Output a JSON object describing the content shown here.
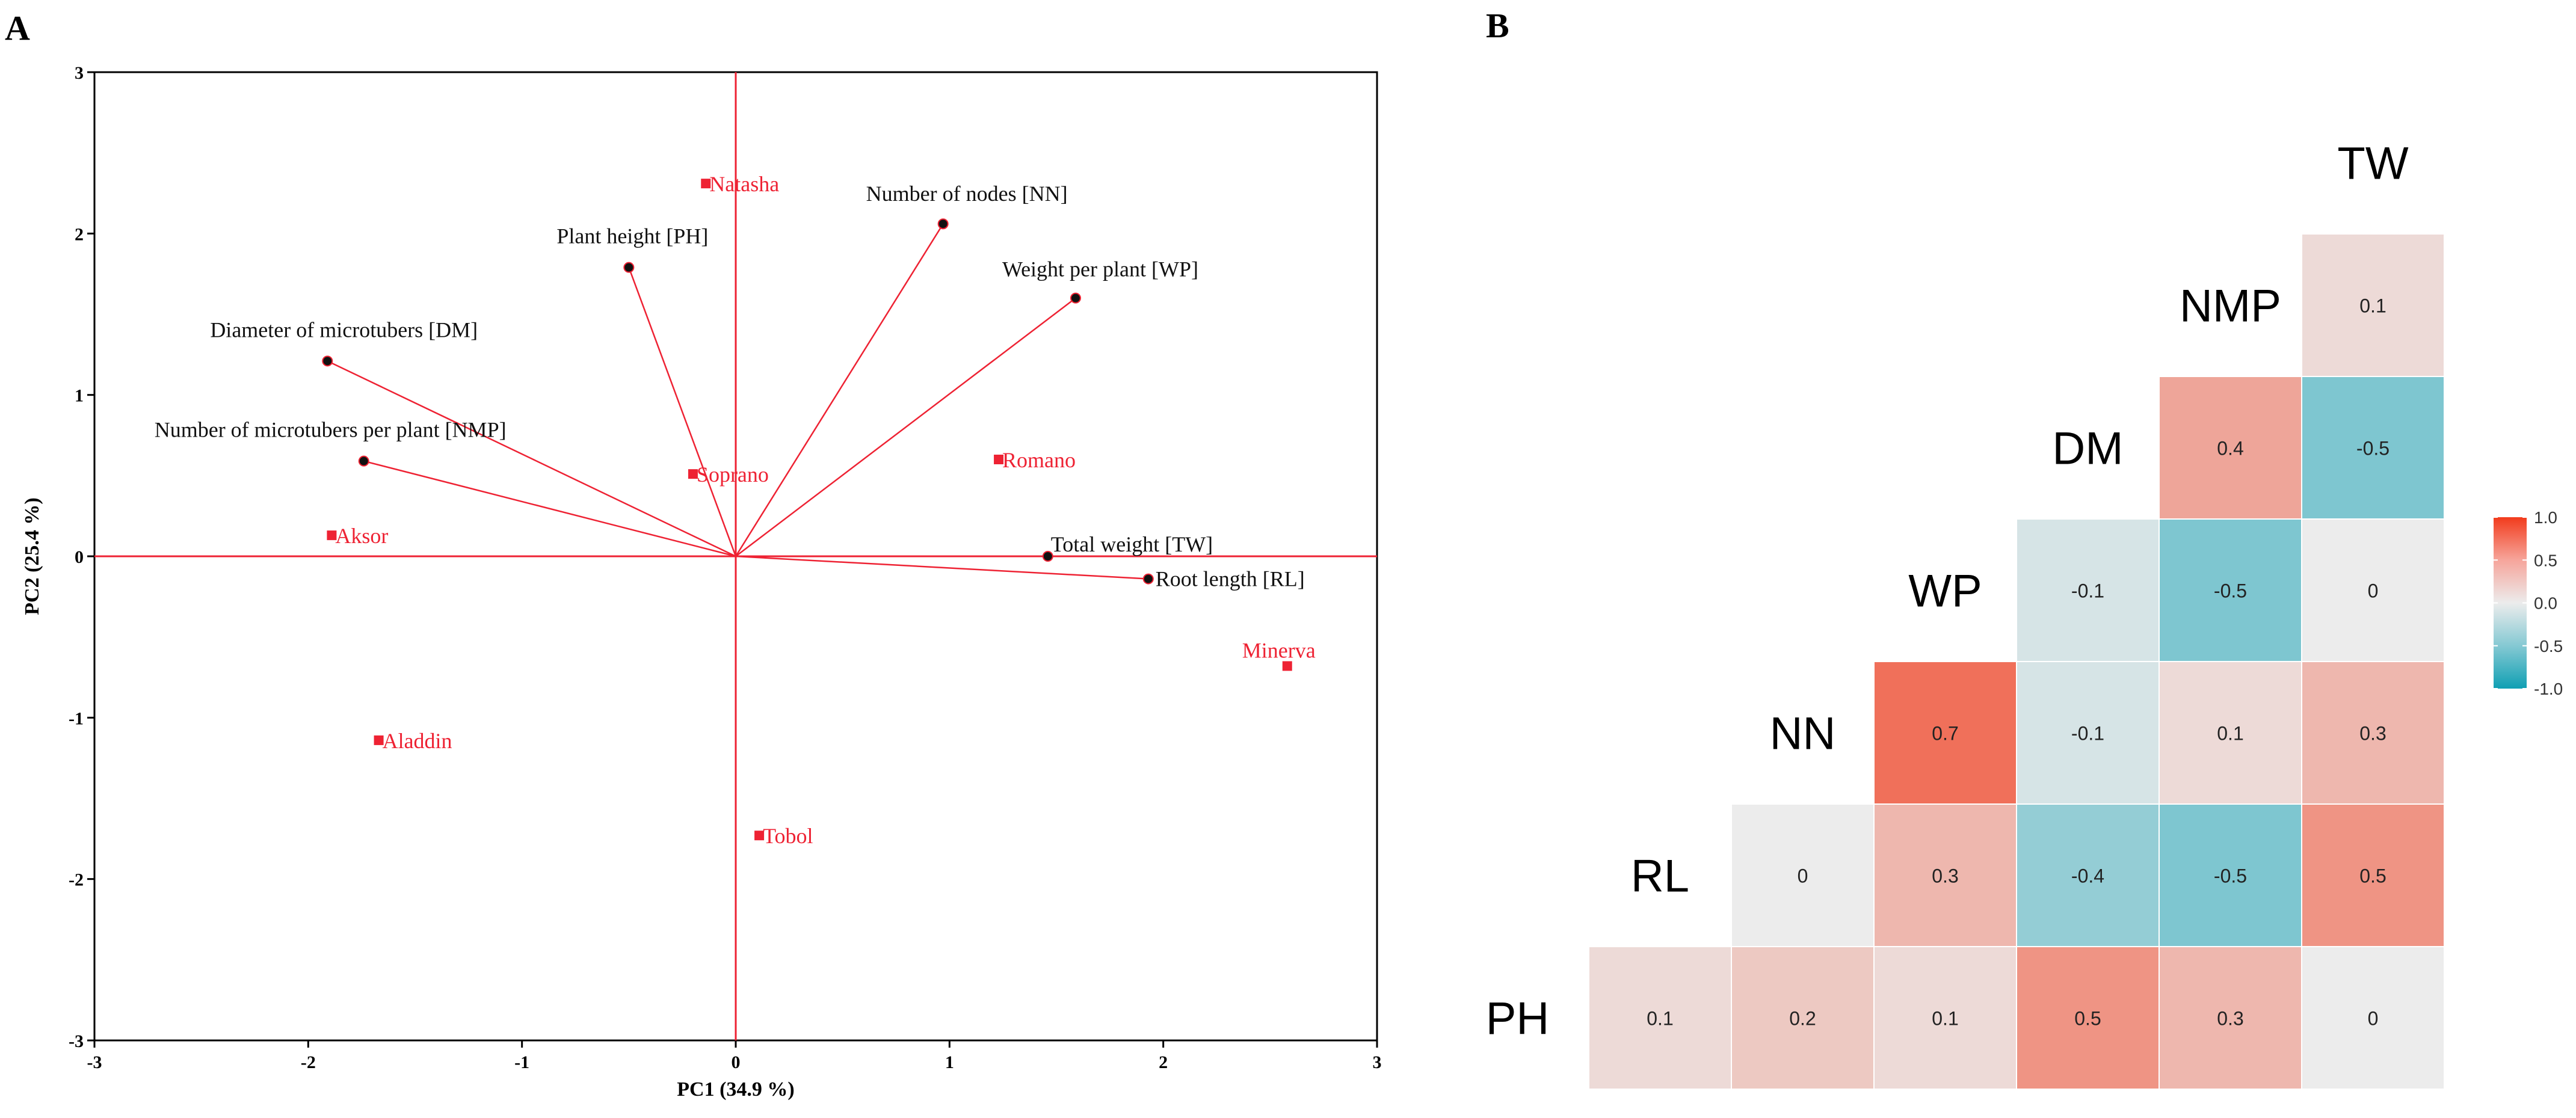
{
  "panel_labels": {
    "a": "A",
    "b": "B"
  },
  "chart_data": [
    {
      "type": "scatter",
      "subtype": "pca-biplot",
      "title": "",
      "xlabel": "PC1  (34.9 %)",
      "ylabel": "PC2  (25.4 %)",
      "xlim": [
        -3,
        3
      ],
      "ylim": [
        -3,
        3
      ],
      "xticks": [
        "-3",
        "-2",
        "-1",
        "0",
        "1",
        "2",
        "3"
      ],
      "yticks": [
        "-3",
        "-2",
        "-1",
        "0",
        "1",
        "2",
        "3"
      ],
      "grid": false,
      "colors": {
        "accent": "#ee2233",
        "marker": "#111111",
        "axis": "#000000"
      },
      "loadings": [
        {
          "name": "Plant height [PH]",
          "x": -0.5,
          "y": 1.79
        },
        {
          "name": "Number of nodes [NN]",
          "x": 0.97,
          "y": 2.06
        },
        {
          "name": "Weight per plant [WP]",
          "x": 1.59,
          "y": 1.6
        },
        {
          "name": "Diameter of microtubers [DM]",
          "x": -1.91,
          "y": 1.21
        },
        {
          "name": "Number of microtubers per plant [NMP]",
          "x": -1.74,
          "y": 0.59
        },
        {
          "name": "Total weight [TW]",
          "x": 1.46,
          "y": 0.0
        },
        {
          "name": "Root length [RL]",
          "x": 1.93,
          "y": -0.14
        }
      ],
      "scores": [
        {
          "name": "Natasha",
          "x": -0.14,
          "y": 2.31
        },
        {
          "name": "Soprano",
          "x": -0.2,
          "y": 0.51
        },
        {
          "name": "Romano",
          "x": 1.23,
          "y": 0.6
        },
        {
          "name": "Aksor",
          "x": -1.89,
          "y": 0.13
        },
        {
          "name": "Minerva",
          "x": 2.58,
          "y": -0.68
        },
        {
          "name": "Aladdin",
          "x": -1.67,
          "y": -1.14
        },
        {
          "name": "Tobol",
          "x": 0.11,
          "y": -1.73
        }
      ]
    },
    {
      "type": "heatmap",
      "subtype": "correlation-lower-triangle",
      "title": "",
      "variables": [
        "PH",
        "RL",
        "NN",
        "WP",
        "DM",
        "NMP",
        "TW"
      ],
      "cells": [
        {
          "row": "RL",
          "col": "PH",
          "value": 0.1
        },
        {
          "row": "NN",
          "col": "PH",
          "value": 0.2
        },
        {
          "row": "NN",
          "col": "RL",
          "value": 0
        },
        {
          "row": "WP",
          "col": "PH",
          "value": 0.1
        },
        {
          "row": "WP",
          "col": "RL",
          "value": 0.3
        },
        {
          "row": "WP",
          "col": "NN",
          "value": 0.7
        },
        {
          "row": "DM",
          "col": "PH",
          "value": 0.5
        },
        {
          "row": "DM",
          "col": "RL",
          "value": -0.4
        },
        {
          "row": "DM",
          "col": "NN",
          "value": -0.1
        },
        {
          "row": "DM",
          "col": "WP",
          "value": -0.1
        },
        {
          "row": "NMP",
          "col": "PH",
          "value": 0.3
        },
        {
          "row": "NMP",
          "col": "RL",
          "value": -0.5
        },
        {
          "row": "NMP",
          "col": "NN",
          "value": 0.1
        },
        {
          "row": "NMP",
          "col": "WP",
          "value": -0.5
        },
        {
          "row": "NMP",
          "col": "DM",
          "value": 0.4
        },
        {
          "row": "TW",
          "col": "PH",
          "value": 0
        },
        {
          "row": "TW",
          "col": "RL",
          "value": 0.5
        },
        {
          "row": "TW",
          "col": "NN",
          "value": 0.3
        },
        {
          "row": "TW",
          "col": "WP",
          "value": 0
        },
        {
          "row": "TW",
          "col": "DM",
          "value": -0.5
        },
        {
          "row": "TW",
          "col": "NMP",
          "value": 0.1
        }
      ],
      "legend": {
        "range": [
          -1.0,
          1.0
        ],
        "ticks": [
          "1.0",
          "0.5",
          "0.0",
          "-0.5",
          "-1.0"
        ],
        "placement": "right",
        "colors": {
          "low": "#0f9fb3",
          "mid": "#ececec",
          "high": "#f23b1c"
        }
      }
    }
  ]
}
